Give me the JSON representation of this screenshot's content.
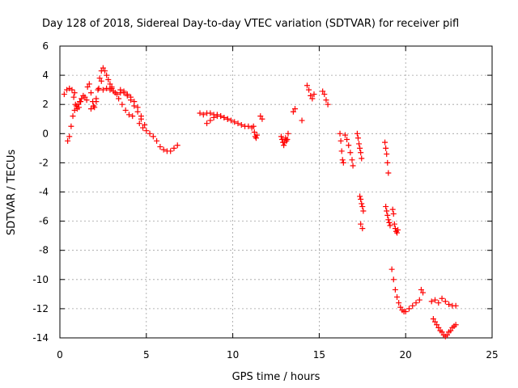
{
  "chart_data": {
    "type": "scatter",
    "title": "Day 128 of 2018, Sidereal Day-to-day VTEC variation (SDTVAR) for receiver pifl",
    "xlabel": "GPS time / hours",
    "ylabel": "SDTVAR / TECUs",
    "xlim": [
      0,
      25
    ],
    "ylim": [
      -14,
      6
    ],
    "xticks": [
      0,
      5,
      10,
      15,
      20,
      25
    ],
    "yticks": [
      -14,
      -12,
      -10,
      -8,
      -6,
      -4,
      -2,
      0,
      2,
      4,
      6
    ],
    "grid": true,
    "marker": "+",
    "color": "#ff0000",
    "segments": [
      {
        "x": [
          0.25,
          0.4,
          0.55,
          0.7,
          0.85
        ],
        "y": [
          2.7,
          3.0,
          3.1,
          3.0,
          2.8
        ]
      },
      {
        "x": [
          0.45,
          0.55,
          0.65,
          0.75,
          0.85,
          0.95,
          1.05,
          1.15,
          1.25,
          1.35,
          1.45,
          1.55
        ],
        "y": [
          -0.5,
          -0.2,
          0.5,
          1.2,
          1.6,
          1.9,
          2.0,
          2.2,
          2.4,
          2.6,
          2.5,
          2.3
        ]
      },
      {
        "x": [
          0.8,
          0.9,
          1.0,
          1.1,
          1.2
        ],
        "y": [
          2.5,
          2.0,
          1.7,
          1.8,
          2.2
        ]
      },
      {
        "x": [
          1.6,
          1.7,
          1.8,
          1.9,
          2.0,
          2.1,
          2.2,
          2.3,
          2.4,
          2.5,
          2.6,
          2.7,
          2.8,
          2.9,
          3.0
        ],
        "y": [
          3.2,
          3.4,
          2.8,
          2.2,
          1.8,
          2.2,
          3.0,
          3.8,
          4.3,
          4.5,
          4.3,
          4.0,
          3.7,
          3.4,
          3.2
        ]
      },
      {
        "x": [
          1.8,
          1.95,
          2.1,
          2.25,
          2.4
        ],
        "y": [
          1.7,
          1.9,
          2.4,
          3.1,
          3.6
        ]
      },
      {
        "x": [
          2.5,
          2.7,
          2.9,
          3.1,
          3.3,
          3.5,
          3.7,
          3.9,
          4.1,
          4.3,
          4.5,
          4.7
        ],
        "y": [
          3.0,
          3.1,
          3.0,
          2.9,
          2.7,
          2.8,
          2.9,
          2.7,
          2.5,
          2.2,
          1.8,
          1.2
        ]
      },
      {
        "x": [
          3.0,
          3.2,
          3.4,
          3.6,
          3.8,
          4.0,
          4.2
        ],
        "y": [
          3.1,
          2.8,
          2.4,
          2.0,
          1.6,
          1.3,
          1.2
        ]
      },
      {
        "x": [
          3.5,
          3.7,
          3.9,
          4.1,
          4.3,
          4.5,
          4.7,
          4.9
        ],
        "y": [
          3.0,
          2.8,
          2.6,
          2.3,
          1.9,
          1.5,
          1.0,
          0.6
        ]
      },
      {
        "x": [
          4.6,
          4.8,
          5.0,
          5.2,
          5.4,
          5.6,
          5.8,
          6.0,
          6.2,
          6.4,
          6.6,
          6.8
        ],
        "y": [
          0.7,
          0.4,
          0.2,
          0.0,
          -0.2,
          -0.5,
          -0.9,
          -1.1,
          -1.2,
          -1.2,
          -1.0,
          -0.8
        ]
      },
      {
        "x": [
          8.1,
          8.3,
          8.5,
          8.7,
          8.9,
          9.1,
          9.3,
          9.5,
          9.7,
          9.9,
          10.1,
          10.3,
          10.5,
          10.7,
          10.9,
          11.1
        ],
        "y": [
          1.4,
          1.3,
          1.4,
          1.4,
          1.3,
          1.3,
          1.2,
          1.1,
          1.0,
          0.9,
          0.8,
          0.7,
          0.6,
          0.5,
          0.5,
          0.4
        ]
      },
      {
        "x": [
          8.5,
          8.7,
          8.9,
          9.1,
          9.3,
          9.5,
          9.7
        ],
        "y": [
          0.7,
          0.9,
          1.1,
          1.2,
          1.2,
          1.1,
          1.0
        ]
      },
      {
        "x": [
          11.2,
          11.25,
          11.3,
          11.35,
          11.4
        ],
        "y": [
          0.5,
          0.1,
          -0.2,
          -0.3,
          -0.1
        ]
      },
      {
        "x": [
          11.6,
          11.7
        ],
        "y": [
          1.2,
          1.0
        ]
      },
      {
        "x": [
          12.8,
          12.85,
          12.9,
          12.95,
          13.0,
          13.05,
          13.1,
          13.15,
          13.2
        ],
        "y": [
          -0.2,
          -0.4,
          -0.6,
          -0.8,
          -0.6,
          -0.3,
          -0.5,
          -0.4,
          0.0
        ]
      },
      {
        "x": [
          13.5,
          13.6
        ],
        "y": [
          1.5,
          1.7
        ]
      },
      {
        "x": [
          14.0
        ],
        "y": [
          0.9
        ]
      },
      {
        "x": [
          14.3,
          14.4,
          14.5,
          14.6,
          14.7
        ],
        "y": [
          3.3,
          3.0,
          2.6,
          2.4,
          2.7
        ]
      },
      {
        "x": [
          15.2,
          15.3,
          15.4,
          15.5
        ],
        "y": [
          2.9,
          2.7,
          2.3,
          2.0
        ]
      },
      {
        "x": [
          16.2,
          16.25,
          16.3,
          16.35,
          16.4
        ],
        "y": [
          0.0,
          -0.5,
          -1.2,
          -1.8,
          -2.0
        ]
      },
      {
        "x": [
          16.5,
          16.6,
          16.7,
          16.8,
          16.9,
          16.95
        ],
        "y": [
          -0.1,
          -0.4,
          -0.8,
          -1.3,
          -1.8,
          -2.2
        ]
      },
      {
        "x": [
          17.2,
          17.25,
          17.3,
          17.35,
          17.4,
          17.45
        ],
        "y": [
          0.0,
          -0.3,
          -0.7,
          -1.0,
          -1.3,
          -1.7
        ]
      },
      {
        "x": [
          17.35,
          17.4,
          17.45,
          17.5,
          17.55
        ],
        "y": [
          -4.3,
          -4.5,
          -4.8,
          -5.0,
          -5.3
        ]
      },
      {
        "x": [
          17.4,
          17.5
        ],
        "y": [
          -6.2,
          -6.5
        ]
      },
      {
        "x": [
          18.8,
          18.85,
          18.9,
          18.95,
          19.0
        ],
        "y": [
          -0.6,
          -1.0,
          -1.4,
          -2.0,
          -2.7
        ]
      },
      {
        "x": [
          18.85,
          18.9,
          18.95,
          19.0,
          19.05,
          19.1
        ],
        "y": [
          -5.0,
          -5.3,
          -5.6,
          -5.9,
          -6.1,
          -6.3
        ]
      },
      {
        "x": [
          19.25,
          19.3,
          19.35,
          19.4,
          19.45,
          19.5,
          19.55
        ],
        "y": [
          -5.2,
          -5.5,
          -6.2,
          -6.5,
          -6.7,
          -6.8,
          -6.6
        ]
      },
      {
        "x": [
          19.2,
          19.3,
          19.4,
          19.5,
          19.6,
          19.7,
          19.8,
          19.9,
          20.0,
          20.2,
          20.4,
          20.6,
          20.8
        ],
        "y": [
          -9.3,
          -10.0,
          -10.7,
          -11.2,
          -11.6,
          -11.9,
          -12.1,
          -12.2,
          -12.2,
          -12.0,
          -11.8,
          -11.6,
          -11.4
        ]
      },
      {
        "x": [
          20.9,
          21.0
        ],
        "y": [
          -10.7,
          -10.9
        ]
      },
      {
        "x": [
          21.5,
          21.7,
          21.9,
          22.1,
          22.3,
          22.5,
          22.7,
          22.9
        ],
        "y": [
          -11.5,
          -11.4,
          -11.6,
          -11.3,
          -11.5,
          -11.7,
          -11.8,
          -11.8
        ]
      },
      {
        "x": [
          21.6,
          21.7,
          21.8,
          21.9,
          22.0,
          22.1,
          22.2,
          22.3,
          22.4,
          22.5,
          22.6,
          22.7,
          22.8,
          22.9
        ],
        "y": [
          -12.7,
          -12.9,
          -13.1,
          -13.3,
          -13.5,
          -13.6,
          -13.8,
          -13.9,
          -13.8,
          -13.6,
          -13.5,
          -13.3,
          -13.2,
          -13.1
        ]
      }
    ]
  }
}
